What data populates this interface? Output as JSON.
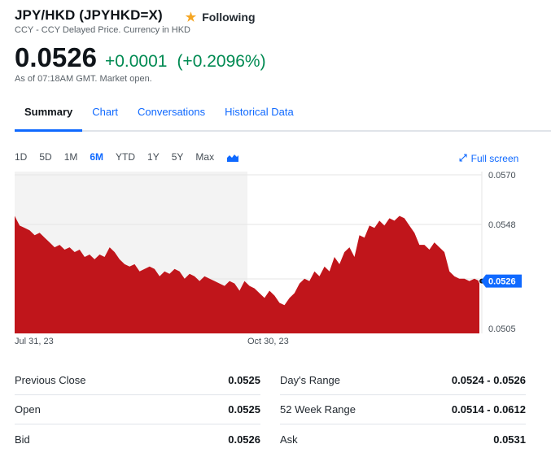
{
  "quote": {
    "title": "JPY/HKD (JPYHKD=X)",
    "subtitle": "CCY - CCY Delayed Price. Currency in HKD",
    "follow_label": "Following",
    "price": "0.0526",
    "change": "+0.0001",
    "change_pct": "(+0.2096%)",
    "as_of": "As of 07:18AM GMT. Market open.",
    "colors": {
      "positive": "#008a52",
      "accent": "#0f69ff",
      "chart_fill": "#c0151b",
      "star": "#f5a623"
    }
  },
  "tabs": [
    {
      "label": "Summary",
      "active": true
    },
    {
      "label": "Chart",
      "active": false
    },
    {
      "label": "Conversations",
      "active": false
    },
    {
      "label": "Historical Data",
      "active": false
    }
  ],
  "ranges": [
    {
      "label": "1D",
      "active": false
    },
    {
      "label": "5D",
      "active": false
    },
    {
      "label": "1M",
      "active": false
    },
    {
      "label": "6M",
      "active": true
    },
    {
      "label": "YTD",
      "active": false
    },
    {
      "label": "1Y",
      "active": false
    },
    {
      "label": "5Y",
      "active": false
    },
    {
      "label": "Max",
      "active": false
    }
  ],
  "chart_type_icon": "mountain-chart-icon",
  "fullscreen": {
    "label": "Full screen",
    "icon": "expand-icon"
  },
  "chart_data": {
    "type": "area",
    "x_tick_labels": [
      "Jul 31, 23",
      "Oct 30, 23"
    ],
    "y_tick_labels": [
      "0.0570",
      "0.0548",
      "0.0505"
    ],
    "ylim": [
      0.0505,
      0.057
    ],
    "current_value_label": "0.0526",
    "series": [
      {
        "values": [
          0.0553,
          0.0549,
          0.0548,
          0.0547,
          0.0545,
          0.0546,
          0.0544,
          0.0542,
          0.054,
          0.0541,
          0.0539,
          0.054,
          0.0538,
          0.0539,
          0.0536,
          0.0537,
          0.0535,
          0.0537,
          0.0536,
          0.054,
          0.0538,
          0.0535,
          0.0533,
          0.0532,
          0.0533,
          0.053,
          0.0531,
          0.0532,
          0.0531,
          0.0528,
          0.053,
          0.0529,
          0.0531,
          0.053,
          0.0527,
          0.0529,
          0.0528,
          0.0526,
          0.0528,
          0.0527,
          0.0526,
          0.0525,
          0.0524,
          0.0526,
          0.0525,
          0.0522,
          0.0526,
          0.0524,
          0.0523,
          0.0521,
          0.0519,
          0.0522,
          0.052,
          0.0517,
          0.0516,
          0.0519,
          0.0521,
          0.0525,
          0.0527,
          0.0526,
          0.053,
          0.0528,
          0.0532,
          0.053,
          0.0536,
          0.0533,
          0.0538,
          0.054,
          0.0536,
          0.0545,
          0.0544,
          0.0549,
          0.0548,
          0.0551,
          0.0549,
          0.0552,
          0.0551,
          0.0553,
          0.0552,
          0.0549,
          0.0546,
          0.0541,
          0.0541,
          0.0539,
          0.0542,
          0.054,
          0.0538,
          0.053,
          0.0528,
          0.0527,
          0.0527,
          0.0526,
          0.0527,
          0.0526
        ]
      }
    ],
    "grid": true
  },
  "stats": {
    "left": [
      {
        "label": "Previous Close",
        "value": "0.0525"
      },
      {
        "label": "Open",
        "value": "0.0525"
      },
      {
        "label": "Bid",
        "value": "0.0526"
      }
    ],
    "right": [
      {
        "label": "Day's Range",
        "value": "0.0524 - 0.0526"
      },
      {
        "label": "52 Week Range",
        "value": "0.0514 - 0.0612"
      },
      {
        "label": "Ask",
        "value": "0.0531"
      }
    ]
  }
}
